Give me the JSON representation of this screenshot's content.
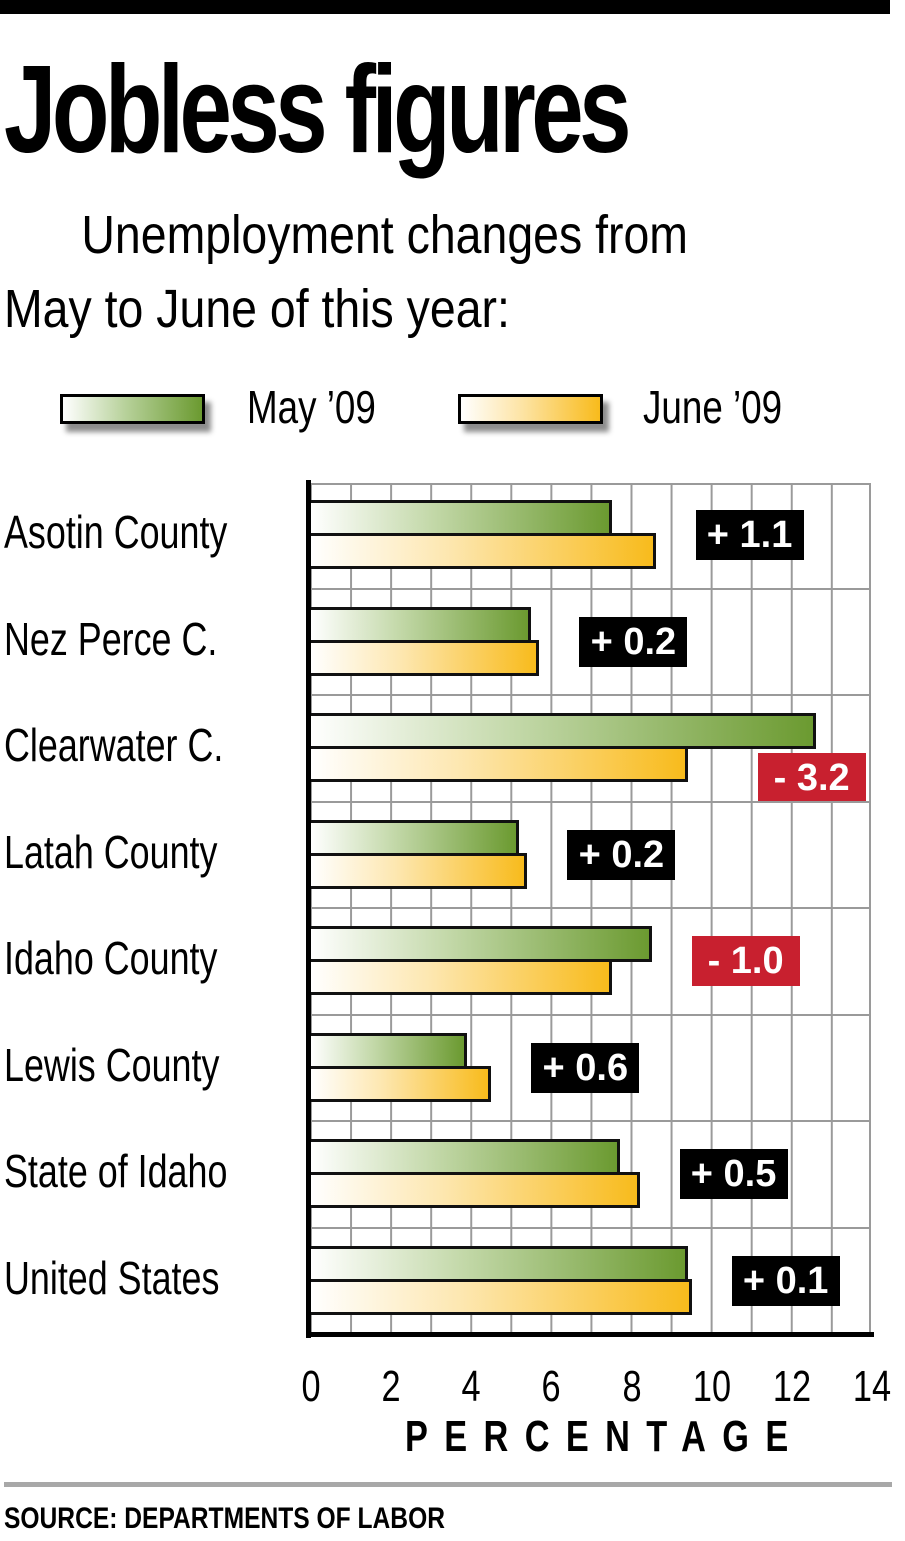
{
  "header": {
    "title": "Jobless figures",
    "subtitle_line1": "Unemployment changes from",
    "subtitle_line2": "May to June of this year:"
  },
  "legend": {
    "may_label": "May ’09",
    "june_label": "June ’09"
  },
  "colors": {
    "may_bar": "#6b9a30",
    "june_bar": "#f8bb1c",
    "positive_badge": "#000000",
    "negative_badge": "#c8202f",
    "grid": "#9a9a9a"
  },
  "rows": [
    {
      "label": "Asotin County",
      "may": 7.5,
      "june": 8.6,
      "change": "+ 1.1",
      "sign": "pos"
    },
    {
      "label": "Nez Perce C.",
      "may": 5.5,
      "june": 5.7,
      "change": "+ 0.2",
      "sign": "pos"
    },
    {
      "label": "Clearwater C.",
      "may": 12.6,
      "june": 9.4,
      "change": "- 3.2",
      "sign": "neg"
    },
    {
      "label": "Latah County",
      "may": 5.2,
      "june": 5.4,
      "change": "+ 0.2",
      "sign": "pos"
    },
    {
      "label": "Idaho County",
      "may": 8.5,
      "june": 7.5,
      "change": "- 1.0",
      "sign": "neg"
    },
    {
      "label": "Lewis County",
      "may": 3.9,
      "june": 4.5,
      "change": "+ 0.6",
      "sign": "pos"
    },
    {
      "label": "State of Idaho",
      "may": 7.7,
      "june": 8.2,
      "change": "+ 0.5",
      "sign": "pos"
    },
    {
      "label": "United States",
      "may": 9.4,
      "june": 9.5,
      "change": "+ 0.1",
      "sign": "pos"
    }
  ],
  "axis": {
    "ticks": [
      "0",
      "2",
      "4",
      "6",
      "8",
      "10",
      "12",
      "14"
    ],
    "xlabel": "PERCENTAGE"
  },
  "footer": {
    "source": "SOURCE: DEPARTMENTS OF LABOR"
  },
  "chart_data": {
    "type": "bar",
    "orientation": "horizontal",
    "title": "Jobless figures",
    "subtitle": "Unemployment changes from May to June of this year:",
    "categories": [
      "Asotin County",
      "Nez Perce C.",
      "Clearwater C.",
      "Latah County",
      "Idaho County",
      "Lewis County",
      "State of Idaho",
      "United States"
    ],
    "series": [
      {
        "name": "May ’09",
        "values": [
          7.5,
          5.5,
          12.6,
          5.2,
          8.5,
          3.9,
          7.7,
          9.4
        ]
      },
      {
        "name": "June ’09",
        "values": [
          8.6,
          5.7,
          9.4,
          5.4,
          7.5,
          4.5,
          8.2,
          9.5
        ]
      }
    ],
    "annotations": [
      "+ 1.1",
      "+ 0.2",
      "- 3.2",
      "+ 0.2",
      "- 1.0",
      "+ 0.6",
      "+ 0.5",
      "+ 0.1"
    ],
    "xlabel": "PERCENTAGE",
    "ylabel": "",
    "xlim": [
      0,
      14
    ],
    "xticks": [
      0,
      2,
      4,
      6,
      8,
      10,
      12,
      14
    ],
    "grid": true,
    "legend_position": "top",
    "source": "SOURCE: DEPARTMENTS OF LABOR"
  }
}
